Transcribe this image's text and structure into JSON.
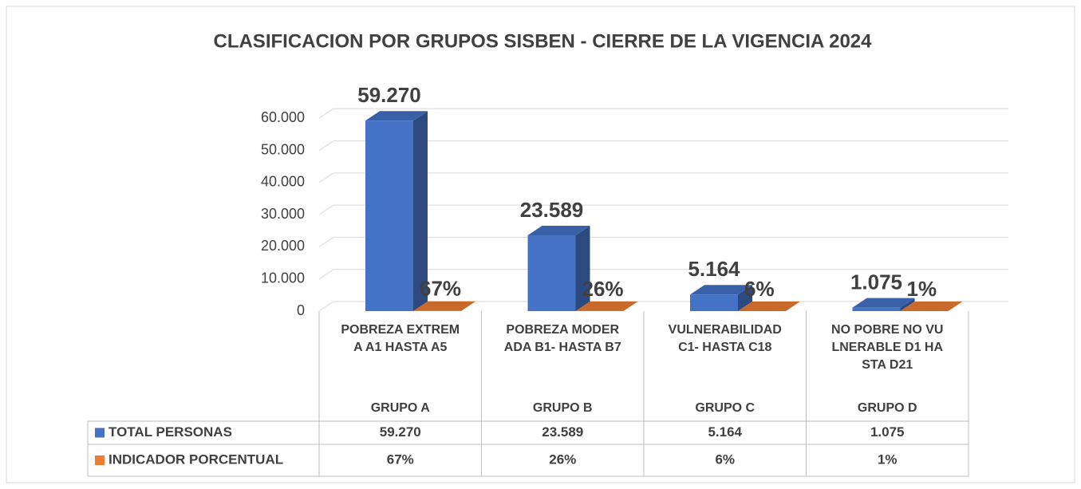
{
  "chart_data": {
    "type": "bar3d",
    "title": "CLASIFICACION POR GRUPOS SISBEN - CIERRE DE LA VIGENCIA 2024",
    "categories": [
      "POBREZA EXTREMA A1 HASTA A5",
      "POBREZA MODERADA B1- HASTA  B7",
      "VULNERABILIDAD C1- HASTA C18",
      "NO POBRE NO VULNERABLE D1 HASTA  D21"
    ],
    "groups": [
      "GRUPO A",
      "GRUPO B",
      "GRUPO C",
      "GRUPO D"
    ],
    "series": [
      {
        "name": "TOTAL PERSONAS",
        "color": "#4472c4",
        "values": [
          59270,
          23589,
          5164,
          1075
        ],
        "value_labels": [
          "59.270",
          "23.589",
          "5.164",
          "1.075"
        ]
      },
      {
        "name": "INDICADOR PORCENTUAL",
        "color": "#ed7d31",
        "values": [
          67,
          26,
          6,
          1
        ],
        "value_labels": [
          "67%",
          "26%",
          "6%",
          "1%"
        ]
      }
    ],
    "ylim": [
      0,
      70000
    ],
    "yticks": [
      0,
      {
        "value": 10000,
        "label": "10.000"
      },
      {
        "value": 20000,
        "label": "20.000"
      },
      {
        "value": 30000,
        "label": "30.000"
      },
      {
        "value": 40000,
        "label": "40.000"
      },
      {
        "value": 50000,
        "label": "50.000"
      },
      {
        "value": 60000,
        "label": "60.000"
      }
    ],
    "grid": true
  }
}
